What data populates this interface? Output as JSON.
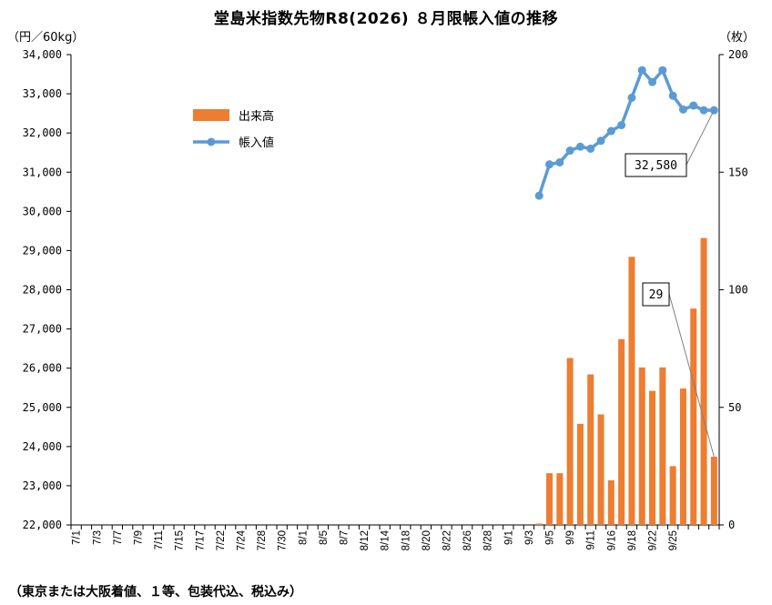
{
  "chart_data": {
    "type": "bar+line",
    "title": "堂島米指数先物R8(2026) ８月限帳入値の推移",
    "y_left_unit": "（円／60kg）",
    "y_right_unit": "（枚）",
    "footnote": "（東京または大阪着値、１等、包装代込、税込み）",
    "y_left_ticks": [
      "22,000",
      "23,000",
      "24,000",
      "25,000",
      "26,000",
      "27,000",
      "28,000",
      "29,000",
      "30,000",
      "31,000",
      "32,000",
      "33,000",
      "34,000"
    ],
    "y_left_range": [
      22000,
      34000
    ],
    "y_right_ticks": [
      "0",
      "50",
      "100",
      "150",
      "200"
    ],
    "y_right_range": [
      0,
      200
    ],
    "x_labels": [
      "7/1",
      "7/3",
      "7/7",
      "7/9",
      "7/11",
      "7/15",
      "7/17",
      "7/22",
      "7/24",
      "7/28",
      "7/30",
      "8/1",
      "8/5",
      "8/7",
      "8/12",
      "8/14",
      "8/18",
      "8/20",
      "8/22",
      "8/26",
      "8/28",
      "9/1",
      "9/3",
      "9/5",
      "9/9",
      "9/11",
      "9/16",
      "9/18",
      "9/22",
      "9/25"
    ],
    "legend": [
      {
        "name": "出来高",
        "color": "#ED7D31"
      },
      {
        "name": "帳入値",
        "color": "#5B9BD5"
      }
    ],
    "series": [
      {
        "name": "出来高",
        "axis": "right",
        "color": "#ED7D31",
        "points": [
          {
            "x": "9/1",
            "y": 0
          },
          {
            "x": "9/2",
            "y": 22
          },
          {
            "x": "9/3",
            "y": 22
          },
          {
            "x": "9/4",
            "y": 71
          },
          {
            "x": "9/5",
            "y": 43
          },
          {
            "x": "9/8",
            "y": 64
          },
          {
            "x": "9/9",
            "y": 47
          },
          {
            "x": "9/10",
            "y": 19
          },
          {
            "x": "9/11",
            "y": 79
          },
          {
            "x": "9/12",
            "y": 114
          },
          {
            "x": "9/16",
            "y": 67
          },
          {
            "x": "9/17",
            "y": 57
          },
          {
            "x": "9/18",
            "y": 67
          },
          {
            "x": "9/19",
            "y": 25
          },
          {
            "x": "9/22",
            "y": 58
          },
          {
            "x": "9/24",
            "y": 92
          },
          {
            "x": "9/25",
            "y": 122
          },
          {
            "x": "9/26",
            "y": 29
          }
        ]
      },
      {
        "name": "帳入値",
        "axis": "left",
        "color": "#5B9BD5",
        "points": [
          {
            "x": "9/1",
            "y": 30400
          },
          {
            "x": "9/2",
            "y": 31200
          },
          {
            "x": "9/3",
            "y": 31250
          },
          {
            "x": "9/4",
            "y": 31550
          },
          {
            "x": "9/5",
            "y": 31650
          },
          {
            "x": "9/8",
            "y": 31600
          },
          {
            "x": "9/9",
            "y": 31800
          },
          {
            "x": "9/10",
            "y": 32050
          },
          {
            "x": "9/11",
            "y": 32200
          },
          {
            "x": "9/12",
            "y": 32900
          },
          {
            "x": "9/16",
            "y": 33600
          },
          {
            "x": "9/17",
            "y": 33300
          },
          {
            "x": "9/18",
            "y": 33600
          },
          {
            "x": "9/19",
            "y": 32950
          },
          {
            "x": "9/22",
            "y": 32600
          },
          {
            "x": "9/24",
            "y": 32700
          },
          {
            "x": "9/25",
            "y": 32580
          },
          {
            "x": "9/26",
            "y": 32580
          }
        ]
      }
    ],
    "callouts": [
      {
        "text": "32,580",
        "series": "帳入値",
        "x": "9/26"
      },
      {
        "text": "29",
        "series": "出来高",
        "x": "9/26"
      }
    ]
  }
}
